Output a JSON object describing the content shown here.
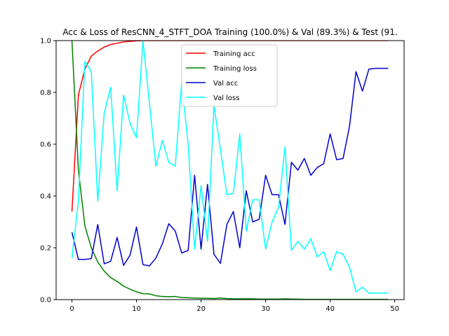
{
  "chart_data": {
    "type": "line",
    "title": "Acc & Loss of ResCNN_4_STFT_DOA Training (100.0%) & Val (89.3%) & Test (91.",
    "xlabel": "",
    "ylabel": "",
    "xlim": [
      -2.45,
      51.45
    ],
    "ylim": [
      0,
      1.0
    ],
    "xticks": [
      0,
      10,
      20,
      30,
      40,
      50
    ],
    "yticks": [
      0.0,
      0.2,
      0.4,
      0.6,
      0.8,
      1.0
    ],
    "xtick_labels": [
      "0",
      "10",
      "20",
      "30",
      "40",
      "50"
    ],
    "ytick_labels": [
      "0.0",
      "0.2",
      "0.4",
      "0.6",
      "0.8",
      "1.0"
    ],
    "grid": false,
    "legend_position": "upper-center",
    "x": [
      0,
      1,
      2,
      3,
      4,
      5,
      6,
      7,
      8,
      9,
      10,
      11,
      12,
      13,
      14,
      15,
      16,
      17,
      18,
      19,
      20,
      21,
      22,
      23,
      24,
      25,
      26,
      27,
      28,
      29,
      30,
      31,
      32,
      33,
      34,
      35,
      36,
      37,
      38,
      39,
      40,
      41,
      42,
      43,
      44,
      45,
      46,
      47,
      48,
      49
    ],
    "series": [
      {
        "name": "Training acc",
        "color": "#ff0000",
        "values": [
          0.34,
          0.79,
          0.89,
          0.94,
          0.96,
          0.975,
          0.985,
          0.99,
          0.995,
          0.997,
          0.999,
          1.0,
          1.0,
          1.0,
          1.0,
          1.0,
          1.0,
          1.0,
          1.0,
          1.0,
          1.0,
          1.0,
          1.0,
          1.0,
          1.0,
          1.0,
          1.0,
          1.0,
          1.0,
          1.0,
          1.0,
          1.0,
          1.0,
          1.0,
          1.0,
          1.0,
          1.0,
          1.0,
          1.0,
          1.0,
          1.0,
          1.0,
          1.0,
          1.0,
          1.0,
          1.0,
          1.0,
          1.0,
          1.0,
          1.0
        ]
      },
      {
        "name": "Training loss",
        "color": "#008000",
        "values": [
          1.0,
          0.5,
          0.285,
          0.2,
          0.145,
          0.11,
          0.085,
          0.07,
          0.052,
          0.04,
          0.03,
          0.023,
          0.022,
          0.015,
          0.012,
          0.011,
          0.012,
          0.008,
          0.007,
          0.006,
          0.005,
          0.005,
          0.004,
          0.006,
          0.004,
          0.003,
          0.003,
          0.003,
          0.003,
          0.002,
          0.002,
          0.002,
          0.002,
          0.003,
          0.002,
          0.002,
          0.001,
          0.001,
          0.001,
          0.001,
          0.001,
          0.001,
          0.001,
          0.001,
          0.001,
          0.001,
          0.001,
          0.001,
          0.001,
          0.001
        ]
      },
      {
        "name": "Val acc",
        "color": "#0000cd",
        "values": [
          0.26,
          0.155,
          0.155,
          0.158,
          0.29,
          0.138,
          0.148,
          0.24,
          0.132,
          0.172,
          0.28,
          0.135,
          0.13,
          0.16,
          0.215,
          0.293,
          0.265,
          0.18,
          0.19,
          0.48,
          0.195,
          0.445,
          0.175,
          0.14,
          0.29,
          0.34,
          0.2,
          0.42,
          0.3,
          0.31,
          0.48,
          0.405,
          0.405,
          0.29,
          0.53,
          0.5,
          0.545,
          0.48,
          0.51,
          0.525,
          0.64,
          0.54,
          0.545,
          0.67,
          0.88,
          0.805,
          0.89,
          0.893,
          0.893,
          0.893
        ]
      },
      {
        "name": "Val loss",
        "color": "#00ffff",
        "values": [
          0.16,
          0.38,
          0.92,
          0.88,
          0.38,
          0.72,
          0.82,
          0.42,
          0.79,
          0.68,
          0.625,
          1.0,
          0.76,
          0.515,
          0.615,
          0.53,
          0.515,
          0.84,
          0.6,
          0.195,
          0.44,
          0.225,
          0.75,
          0.58,
          0.405,
          0.41,
          0.64,
          0.265,
          0.385,
          0.385,
          0.195,
          0.3,
          0.355,
          0.59,
          0.19,
          0.225,
          0.195,
          0.235,
          0.165,
          0.185,
          0.112,
          0.185,
          0.175,
          0.125,
          0.03,
          0.048,
          0.025,
          0.025,
          0.025,
          0.025
        ]
      }
    ]
  }
}
